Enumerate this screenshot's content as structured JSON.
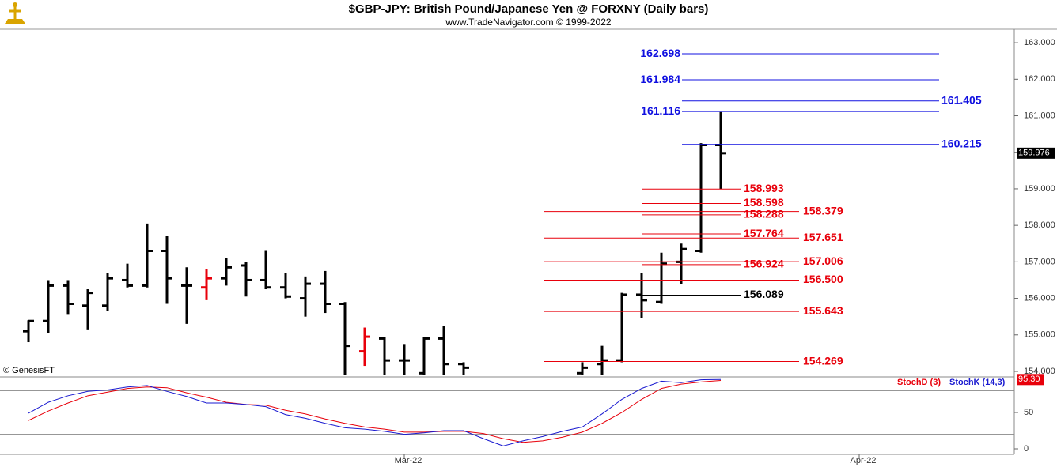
{
  "header": {
    "title": "$GBP-JPY:  British Pound/Japanese Yen @ FORXNY  (Daily bars)",
    "subtitle": "www.TradeNavigator.com © 1999-2022",
    "watermark": "© GenesisFT"
  },
  "chart_data": [
    {
      "type": "ohlc",
      "xlim": [
        -1.44,
        49.84
      ],
      "ylim": [
        153.87,
        163.37
      ],
      "yticks": [
        {
          "value": 154,
          "label": "154.000"
        },
        {
          "value": 155,
          "label": "155.000"
        },
        {
          "value": 156,
          "label": "156.000"
        },
        {
          "value": 157,
          "label": "157.000"
        },
        {
          "value": 158,
          "label": "158.000"
        },
        {
          "value": 159,
          "label": "159.000"
        },
        {
          "value": 160,
          "label": "160.000"
        },
        {
          "value": 161,
          "label": "161.000"
        },
        {
          "value": 162,
          "label": "162.000"
        },
        {
          "value": 163,
          "label": "163.000"
        }
      ],
      "open": [
        155.1,
        155.38,
        156.35,
        155.8,
        155.8,
        156.5,
        156.35,
        157.3,
        156.35,
        156.3,
        156.55,
        156.9,
        156.5,
        156.3,
        156.0,
        156.4,
        155.85,
        154.55,
        154.9,
        154.3,
        153.95,
        154.9,
        154.2,
        null,
        null,
        null,
        null,
        null,
        153.95,
        154.2,
        154.3,
        156.1,
        155.9,
        157.0,
        157.3,
        160.2
      ],
      "high": [
        155.4,
        156.5,
        156.5,
        156.25,
        156.7,
        156.95,
        158.05,
        157.7,
        156.85,
        156.8,
        157.1,
        157.0,
        157.3,
        156.7,
        156.6,
        156.75,
        155.9,
        155.2,
        154.95,
        154.75,
        154.95,
        155.25,
        154.25,
        null,
        null,
        null,
        null,
        null,
        154.25,
        154.7,
        156.15,
        156.7,
        157.25,
        157.5,
        160.25,
        161.1
      ],
      "low": [
        154.8,
        155.05,
        155.55,
        155.15,
        155.65,
        156.3,
        156.3,
        155.85,
        155.3,
        155.95,
        156.35,
        156.05,
        156.25,
        156.0,
        155.5,
        155.6,
        153.9,
        154.15,
        153.9,
        153.9,
        153.9,
        153.9,
        153.9,
        null,
        null,
        null,
        null,
        null,
        153.9,
        153.9,
        154.25,
        155.45,
        155.85,
        156.4,
        157.25,
        159.0
      ],
      "close": [
        155.38,
        156.35,
        155.85,
        156.15,
        156.55,
        156.35,
        157.3,
        156.55,
        156.35,
        156.55,
        156.85,
        156.5,
        156.3,
        156.05,
        156.4,
        155.85,
        154.7,
        154.95,
        154.3,
        154.3,
        154.9,
        154.2,
        154.1,
        null,
        null,
        null,
        null,
        null,
        154.1,
        154.3,
        156.1,
        155.95,
        156.95,
        157.35,
        160.2,
        159.976
      ],
      "colors": [
        "#000000",
        "#000000",
        "#000000",
        "#000000",
        "#000000",
        "#000000",
        "#000000",
        "#000000",
        "#000000",
        "#e8000b",
        "#000000",
        "#000000",
        "#000000",
        "#000000",
        "#000000",
        "#000000",
        "#000000",
        "#e8000b",
        "#000000",
        "#000000",
        "#000000",
        "#000000",
        "#000000",
        "#000000",
        "#000000",
        "#000000",
        "#000000",
        "#000000",
        "#000000",
        "#000000",
        "#000000",
        "#000000",
        "#000000",
        "#000000",
        "#000000",
        "#000000"
      ],
      "levels": [
        {
          "value": 162.698,
          "label": "162.698",
          "color": "#1010e0",
          "group": "blue-left"
        },
        {
          "value": 161.984,
          "label": "161.984",
          "color": "#1010e0",
          "group": "blue-left"
        },
        {
          "value": 161.405,
          "label": "161.405",
          "color": "#1010e0",
          "group": "blue-right"
        },
        {
          "value": 161.116,
          "label": "161.116",
          "color": "#1010e0",
          "group": "blue-left"
        },
        {
          "value": 160.215,
          "label": "160.215",
          "color": "#1010e0",
          "group": "blue-right"
        },
        {
          "value": 158.993,
          "label": "158.993",
          "color": "#e8000b",
          "group": "short"
        },
        {
          "value": 158.598,
          "label": "158.598",
          "color": "#e8000b",
          "group": "short"
        },
        {
          "value": 158.379,
          "label": "158.379",
          "color": "#e8000b",
          "group": "long"
        },
        {
          "value": 158.288,
          "label": "158.288",
          "color": "#e8000b",
          "group": "short"
        },
        {
          "value": 157.764,
          "label": "157.764",
          "color": "#e8000b",
          "group": "short"
        },
        {
          "value": 157.651,
          "label": "157.651",
          "color": "#e8000b",
          "group": "long"
        },
        {
          "value": 157.006,
          "label": "157.006",
          "color": "#e8000b",
          "group": "long"
        },
        {
          "value": 156.924,
          "label": "156.924",
          "color": "#e8000b",
          "group": "short"
        },
        {
          "value": 156.5,
          "label": "156.500",
          "color": "#e8000b",
          "group": "long"
        },
        {
          "value": 156.089,
          "label": "156.089",
          "color": "#000000",
          "group": "short"
        },
        {
          "value": 155.643,
          "label": "155.643",
          "color": "#e8000b",
          "group": "long"
        },
        {
          "value": 154.269,
          "label": "154.269",
          "color": "#e8000b",
          "group": "long"
        }
      ]
    },
    {
      "type": "line",
      "xlim": [
        -1.44,
        49.84
      ],
      "ylim": [
        -7.6,
        97.8
      ],
      "yticks": [
        0,
        50
      ],
      "levels": [
        20,
        80
      ],
      "xticks": [
        {
          "value": 19,
          "label": "Mar-22"
        },
        {
          "value": 42,
          "label": "Apr-22"
        }
      ],
      "series": [
        {
          "name": "StochD (3)",
          "color": "#e8000b",
          "values": [
            39,
            52,
            63,
            73,
            78,
            83,
            85,
            84,
            77,
            71,
            64,
            61,
            60,
            53,
            48,
            41,
            35,
            30,
            27,
            23,
            23,
            24,
            24,
            21,
            14,
            9,
            11,
            16,
            23,
            35,
            50,
            68,
            83,
            89,
            92,
            94
          ]
        },
        {
          "name": "StochK (14,3)",
          "color": "#1a1ad0",
          "values": [
            49,
            64,
            73,
            79,
            81,
            85,
            87,
            79,
            72,
            63,
            63,
            61,
            58,
            47,
            42,
            35,
            29,
            27,
            24,
            20,
            22,
            25,
            25,
            14,
            4,
            11,
            17,
            24,
            30,
            48,
            68,
            83,
            93,
            91,
            95,
            95.3
          ],
          "last_label": "95.30"
        }
      ]
    }
  ]
}
